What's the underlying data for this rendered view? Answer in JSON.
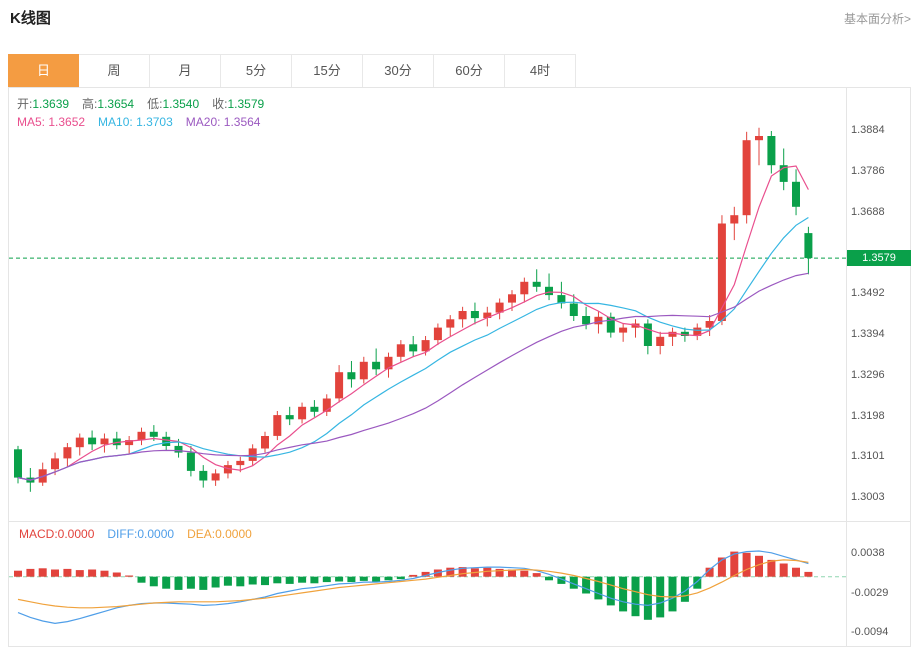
{
  "header": {
    "title": "K线图",
    "analysis_link": "基本面分析>"
  },
  "tabs": [
    {
      "label": "日",
      "active": true
    },
    {
      "label": "周",
      "active": false
    },
    {
      "label": "月",
      "active": false
    },
    {
      "label": "5分",
      "active": false
    },
    {
      "label": "15分",
      "active": false
    },
    {
      "label": "30分",
      "active": false
    },
    {
      "label": "60分",
      "active": false
    },
    {
      "label": "4时",
      "active": false
    }
  ],
  "legend": {
    "ohlc": [
      {
        "label": "开:",
        "value": "1.3639"
      },
      {
        "label": "高:",
        "value": "1.3654"
      },
      {
        "label": "低:",
        "value": "1.3540"
      },
      {
        "label": "收:",
        "value": "1.3579"
      }
    ],
    "ma": [
      {
        "label": "MA5: 1.3652",
        "color": "#e94f8e"
      },
      {
        "label": "MA10: 1.3703",
        "color": "#36b6e2"
      },
      {
        "label": "MA20: 1.3564",
        "color": "#9b59c0"
      }
    ],
    "macd": [
      {
        "label": "MACD:0.0000",
        "color": "#e2433c"
      },
      {
        "label": "DIFF:0.0000",
        "color": "#4f9ee8"
      },
      {
        "label": "DEA:0.0000",
        "color": "#f0a23c"
      }
    ]
  },
  "colors": {
    "up": "#e2433c",
    "down": "#0aa04a",
    "ma5": "#e94f8e",
    "ma10": "#36b6e2",
    "ma20": "#9b59c0",
    "diff": "#4f9ee8",
    "dea": "#f0a23c",
    "price_line": "#0aa04a",
    "zero_line": "#8fd6b0",
    "tab_active_bg": "#f49c42"
  },
  "chart_data": {
    "type": "candlestick",
    "title": "K线图",
    "interval_selected": "日",
    "current_price": 1.3579,
    "current_price_label": "1.3579",
    "price_axis_ticks": [
      1.3884,
      1.3786,
      1.3688,
      1.3492,
      1.3394,
      1.3296,
      1.3198,
      1.3101,
      1.3003
    ],
    "ohlc_display": {
      "open": 1.3639,
      "high": 1.3654,
      "low": 1.354,
      "close": 1.3579
    },
    "ma_display": {
      "ma5": 1.3652,
      "ma10": 1.3703,
      "ma20": 1.3564
    },
    "ma_periods": [
      5,
      10,
      20
    ],
    "candles_ohlc": [
      [
        1.312,
        1.3128,
        1.3038,
        1.3052
      ],
      [
        1.3052,
        1.3075,
        1.3018,
        1.304
      ],
      [
        1.304,
        1.3088,
        1.3032,
        1.3072
      ],
      [
        1.3072,
        1.3112,
        1.3058,
        1.3098
      ],
      [
        1.3098,
        1.3135,
        1.3078,
        1.3125
      ],
      [
        1.3125,
        1.3158,
        1.3105,
        1.3148
      ],
      [
        1.3148,
        1.3165,
        1.3118,
        1.3132
      ],
      [
        1.3132,
        1.3158,
        1.3112,
        1.3146
      ],
      [
        1.3146,
        1.3162,
        1.312,
        1.313
      ],
      [
        1.313,
        1.3152,
        1.3108,
        1.3142
      ],
      [
        1.3142,
        1.3172,
        1.313,
        1.3162
      ],
      [
        1.3162,
        1.3178,
        1.314,
        1.315
      ],
      [
        1.315,
        1.3162,
        1.3118,
        1.3128
      ],
      [
        1.3128,
        1.3145,
        1.31,
        1.3112
      ],
      [
        1.3112,
        1.3128,
        1.3055,
        1.3068
      ],
      [
        1.3068,
        1.3082,
        1.3028,
        1.3045
      ],
      [
        1.3045,
        1.3072,
        1.3032,
        1.3062
      ],
      [
        1.3062,
        1.3092,
        1.305,
        1.3082
      ],
      [
        1.3082,
        1.3102,
        1.3065,
        1.3092
      ],
      [
        1.3092,
        1.3132,
        1.308,
        1.3122
      ],
      [
        1.3122,
        1.3162,
        1.3112,
        1.3152
      ],
      [
        1.3152,
        1.3212,
        1.3142,
        1.3202
      ],
      [
        1.3202,
        1.3222,
        1.3178,
        1.3192
      ],
      [
        1.3192,
        1.3232,
        1.3182,
        1.3222
      ],
      [
        1.3222,
        1.3238,
        1.3198,
        1.321
      ],
      [
        1.321,
        1.3252,
        1.32,
        1.3242
      ],
      [
        1.3242,
        1.3322,
        1.3232,
        1.3305
      ],
      [
        1.3305,
        1.3332,
        1.3268,
        1.3288
      ],
      [
        1.3288,
        1.3342,
        1.3278,
        1.333
      ],
      [
        1.333,
        1.3362,
        1.3298,
        1.3312
      ],
      [
        1.3312,
        1.3352,
        1.3292,
        1.3342
      ],
      [
        1.3342,
        1.3382,
        1.333,
        1.3372
      ],
      [
        1.3372,
        1.3392,
        1.3342,
        1.3355
      ],
      [
        1.3355,
        1.3392,
        1.3345,
        1.3382
      ],
      [
        1.3382,
        1.3422,
        1.337,
        1.3412
      ],
      [
        1.3412,
        1.3442,
        1.3392,
        1.3432
      ],
      [
        1.3432,
        1.3462,
        1.3412,
        1.3452
      ],
      [
        1.3452,
        1.3472,
        1.342,
        1.3435
      ],
      [
        1.3435,
        1.3462,
        1.3415,
        1.3448
      ],
      [
        1.3448,
        1.3482,
        1.3432,
        1.3472
      ],
      [
        1.3472,
        1.3502,
        1.3452,
        1.3492
      ],
      [
        1.3492,
        1.3532,
        1.3472,
        1.3522
      ],
      [
        1.3522,
        1.3552,
        1.3498,
        1.351
      ],
      [
        1.351,
        1.3542,
        1.3478,
        1.349
      ],
      [
        1.349,
        1.3522,
        1.3458,
        1.347
      ],
      [
        1.347,
        1.3492,
        1.3428,
        1.344
      ],
      [
        1.344,
        1.3462,
        1.3408,
        1.342
      ],
      [
        1.342,
        1.3452,
        1.3398,
        1.3438
      ],
      [
        1.3438,
        1.3448,
        1.3388,
        1.34
      ],
      [
        1.34,
        1.3422,
        1.3378,
        1.3412
      ],
      [
        1.3412,
        1.3432,
        1.3388,
        1.3422
      ],
      [
        1.3422,
        1.3432,
        1.3348,
        1.3368
      ],
      [
        1.3368,
        1.3402,
        1.3348,
        1.339
      ],
      [
        1.339,
        1.3412,
        1.3368,
        1.3402
      ],
      [
        1.3402,
        1.3412,
        1.3378,
        1.3392
      ],
      [
        1.3392,
        1.3422,
        1.3382,
        1.3412
      ],
      [
        1.3412,
        1.3442,
        1.3392,
        1.3428
      ],
      [
        1.3428,
        1.3682,
        1.3418,
        1.3662
      ],
      [
        1.3662,
        1.3702,
        1.3622,
        1.3682
      ],
      [
        1.3682,
        1.3882,
        1.3662,
        1.3862
      ],
      [
        1.3862,
        1.3892,
        1.3802,
        1.3872
      ],
      [
        1.3872,
        1.3884,
        1.3782,
        1.3802
      ],
      [
        1.3802,
        1.3842,
        1.3742,
        1.3762
      ],
      [
        1.3762,
        1.3792,
        1.3682,
        1.3702
      ],
      [
        1.3639,
        1.3654,
        1.354,
        1.3579
      ]
    ],
    "macd_panel": {
      "type": "macd",
      "axis_ticks": [
        0.0038,
        -0.0029,
        -0.0094
      ],
      "zero_line": 0,
      "histogram": [
        0.001,
        0.0013,
        0.0014,
        0.0012,
        0.0013,
        0.0011,
        0.0012,
        0.001,
        0.0007,
        0.0002,
        -0.001,
        -0.0016,
        -0.002,
        -0.0022,
        -0.002,
        -0.0022,
        -0.0018,
        -0.0015,
        -0.0016,
        -0.0013,
        -0.0014,
        -0.0011,
        -0.0012,
        -0.001,
        -0.0011,
        -0.0009,
        -0.0008,
        -0.0009,
        -0.0007,
        -0.0008,
        -0.0006,
        -0.0004,
        0.0003,
        0.0008,
        0.0012,
        0.0015,
        0.0016,
        0.0014,
        0.0015,
        0.0013,
        0.0012,
        0.001,
        0.0006,
        -0.0006,
        -0.0012,
        -0.002,
        -0.0028,
        -0.0038,
        -0.0048,
        -0.0058,
        -0.0066,
        -0.0072,
        -0.0068,
        -0.0058,
        -0.0042,
        -0.002,
        0.0015,
        0.0032,
        0.0042,
        0.004,
        0.0035,
        0.0028,
        0.0022,
        0.0015,
        0.0008
      ],
      "diff": [
        -0.006,
        -0.0068,
        -0.0074,
        -0.0078,
        -0.0075,
        -0.007,
        -0.0064,
        -0.0058,
        -0.0052,
        -0.0048,
        -0.0045,
        -0.0044,
        -0.0044,
        -0.0045,
        -0.0046,
        -0.0048,
        -0.0047,
        -0.0045,
        -0.0042,
        -0.0038,
        -0.0034,
        -0.0028,
        -0.0024,
        -0.002,
        -0.0018,
        -0.0015,
        -0.0012,
        -0.0011,
        -0.0009,
        -0.0009,
        -0.0008,
        -0.0006,
        -0.0003,
        0.0002,
        0.0007,
        0.0011,
        0.0014,
        0.0015,
        0.0016,
        0.0016,
        0.0015,
        0.0014,
        0.001,
        0.0004,
        -0.0004,
        -0.0012,
        -0.002,
        -0.0028,
        -0.0036,
        -0.0042,
        -0.0046,
        -0.0048,
        -0.0044,
        -0.0036,
        -0.0024,
        -0.0008,
        0.0012,
        0.0028,
        0.0038,
        0.0042,
        0.0043,
        0.004,
        0.0034,
        0.0028,
        0.0022
      ],
      "dea": [
        -0.0038,
        -0.0042,
        -0.0046,
        -0.0049,
        -0.0051,
        -0.0052,
        -0.0052,
        -0.0051,
        -0.005,
        -0.0048,
        -0.0046,
        -0.0044,
        -0.0043,
        -0.0042,
        -0.0042,
        -0.0042,
        -0.0042,
        -0.0041,
        -0.004,
        -0.0038,
        -0.0036,
        -0.0033,
        -0.003,
        -0.0027,
        -0.0024,
        -0.0021,
        -0.0018,
        -0.0016,
        -0.0014,
        -0.0012,
        -0.001,
        -0.0008,
        -0.0006,
        -0.0004,
        -0.0001,
        0.0002,
        0.0005,
        0.0007,
        0.0009,
        0.001,
        0.0011,
        0.0012,
        0.0011,
        0.0009,
        0.0006,
        0.0002,
        -0.0003,
        -0.0008,
        -0.0014,
        -0.002,
        -0.0025,
        -0.003,
        -0.0033,
        -0.0034,
        -0.0032,
        -0.0027,
        -0.0019,
        -0.0009,
        0.0002,
        0.0012,
        0.002,
        0.0026,
        0.0028,
        0.0027,
        0.0024
      ]
    }
  }
}
